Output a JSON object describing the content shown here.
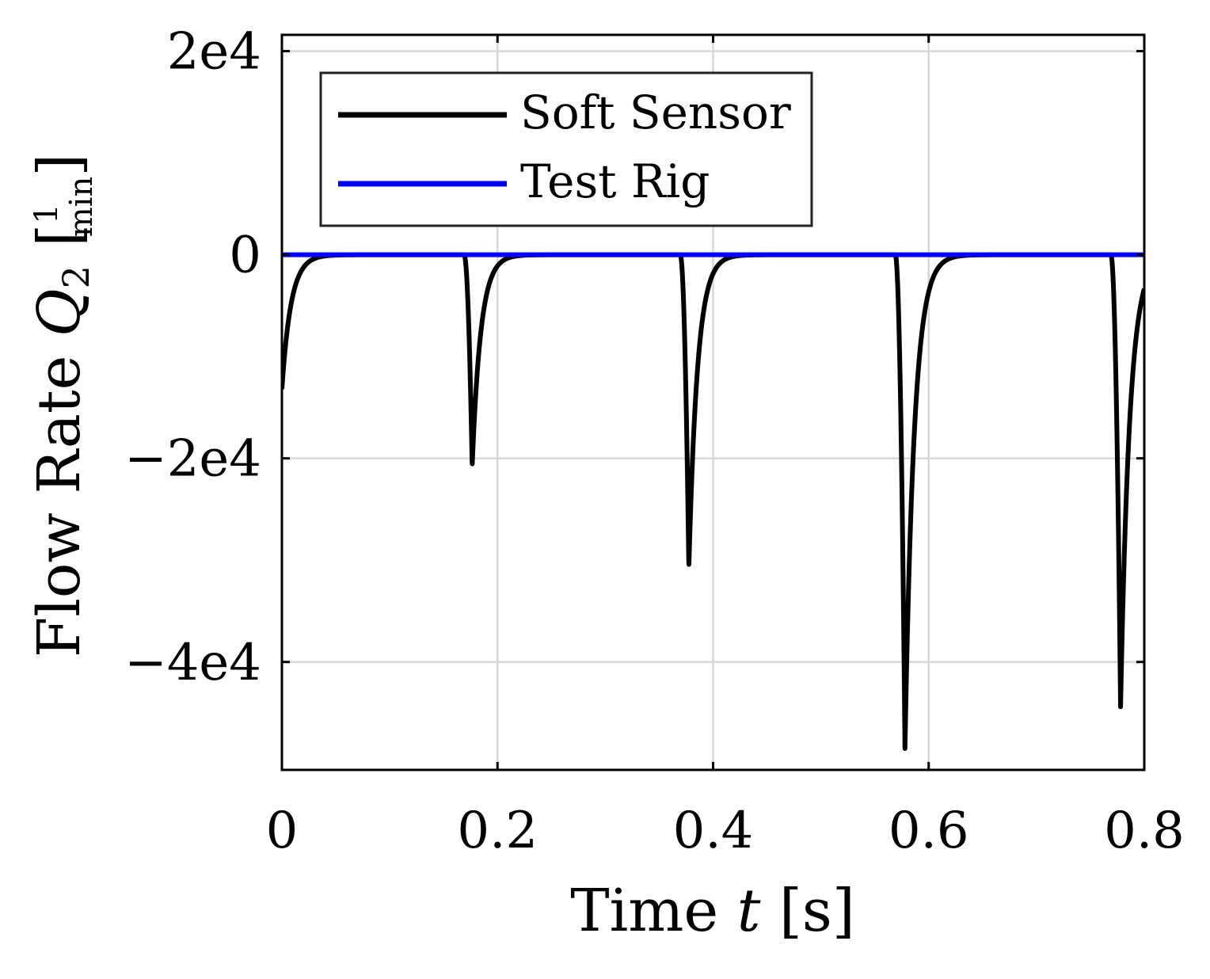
{
  "chart_data": {
    "type": "line",
    "title": "",
    "xlabel": "Time t [s]",
    "ylabel": "Flow Rate Q_2 [1/min]",
    "xlabel_parts": {
      "prefix": "Time ",
      "symbol": "t",
      "unit": " [s]"
    },
    "ylabel_parts": {
      "prefix": "Flow Rate ",
      "symbol": "Q",
      "subscript": "2",
      "unit_open": " [",
      "unit_numerator": "1",
      "unit_denominator": "min",
      "unit_close": "]"
    },
    "xlim": [
      0,
      0.8
    ],
    "ylim": [
      -50600,
      21600
    ],
    "x_ticks": [
      {
        "value": 0,
        "label": "0"
      },
      {
        "value": 0.2,
        "label": "0.2"
      },
      {
        "value": 0.4,
        "label": "0.4"
      },
      {
        "value": 0.6,
        "label": "0.6"
      },
      {
        "value": 0.8,
        "label": "0.8"
      }
    ],
    "y_ticks": [
      {
        "value": 20000,
        "label": "2e4"
      },
      {
        "value": 0,
        "label": "0"
      },
      {
        "value": -20000,
        "label": "−2e4"
      },
      {
        "value": -40000,
        "label": "−4e4"
      }
    ],
    "grid": true,
    "legend": {
      "position": "top-left",
      "entries": [
        {
          "series": 0,
          "label": "Soft Sensor"
        },
        {
          "series": 1,
          "label": "Test Rig"
        }
      ]
    },
    "series": [
      {
        "name": "Soft Sensor",
        "color": "#000000",
        "spikes": [
          {
            "t": 0.0,
            "value": -13200,
            "onset": 0.0,
            "tau": 0.0085
          },
          {
            "t": 0.1765,
            "value": -20800,
            "onset": 0.169,
            "tau": 0.008
          },
          {
            "t": 0.3775,
            "value": -30800,
            "onset": 0.3695,
            "tau": 0.008
          },
          {
            "t": 0.578,
            "value": -48500,
            "onset": 0.569,
            "tau": 0.0085
          },
          {
            "t": 0.778,
            "value": -44400,
            "onset": 0.769,
            "tau": 0.0085
          }
        ]
      },
      {
        "name": "Test Rig",
        "color": "#0000ff",
        "x": [
          0,
          0.8
        ],
        "y": [
          0,
          0
        ]
      }
    ]
  }
}
